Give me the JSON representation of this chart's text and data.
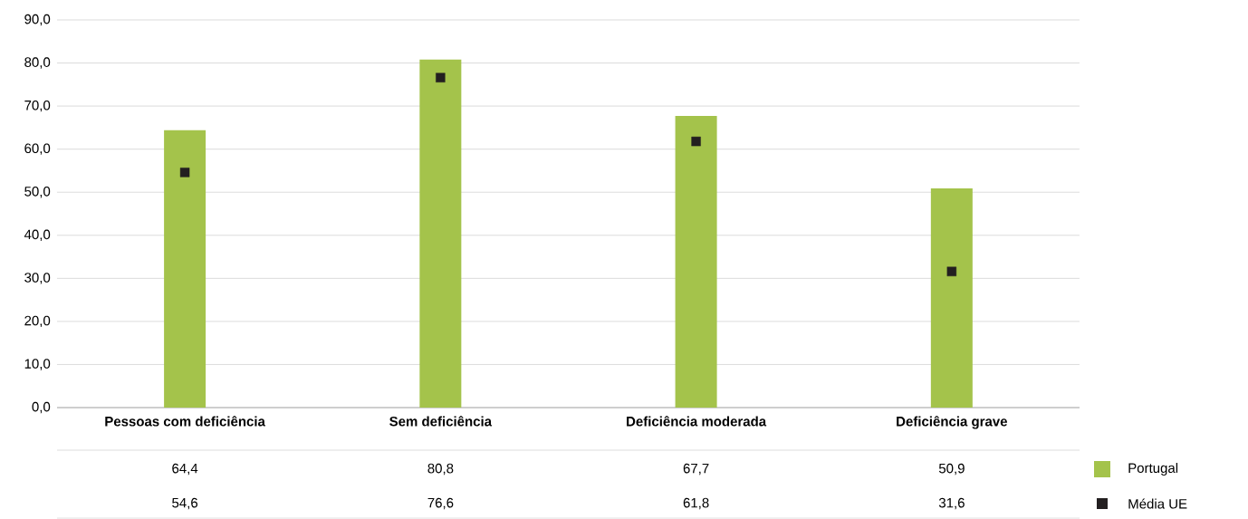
{
  "chart_data": {
    "type": "bar",
    "categories": [
      "Pessoas com deficiência",
      "Sem deficiência",
      "Deficiência moderada",
      "Deficiência grave"
    ],
    "series": [
      {
        "name": "Portugal",
        "color": "#a4c34b",
        "values": [
          64.4,
          80.8,
          67.7,
          50.9
        ],
        "value_labels": [
          "64,4",
          "80,8",
          "67,7",
          "50,9"
        ]
      },
      {
        "name": "Média UE",
        "color": "#231f20",
        "type": "scatter",
        "marker": "square",
        "x": [
          "Pessoas com deficiência",
          "Sem deficiência",
          "Deficiência moderada",
          "Deficiência grave"
        ],
        "values": [
          54.6,
          76.6,
          61.8,
          31.6
        ],
        "value_labels": [
          "54,6",
          "76,6",
          "61,8",
          "31,6"
        ]
      }
    ],
    "ylim": [
      0,
      90
    ],
    "yticks": [
      {
        "value": 0,
        "label": "0,0"
      },
      {
        "value": 10,
        "label": "10,0"
      },
      {
        "value": 20,
        "label": "20,0"
      },
      {
        "value": 30,
        "label": "30,0"
      },
      {
        "value": 40,
        "label": "40,0"
      },
      {
        "value": 50,
        "label": "50,0"
      },
      {
        "value": 60,
        "label": "60,0"
      },
      {
        "value": 70,
        "label": "70,0"
      },
      {
        "value": 80,
        "label": "80,0"
      },
      {
        "value": 90,
        "label": "90,0"
      }
    ],
    "grid": "y",
    "legend": "right"
  }
}
